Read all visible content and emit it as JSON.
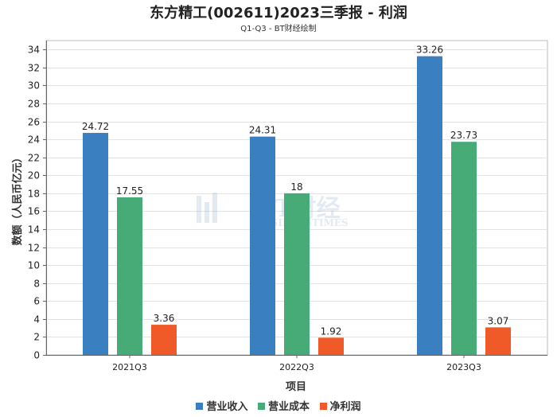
{
  "header": {
    "title": "东方精工(002611)2023三季报 - 利润",
    "subtitle": "Q1-Q3 - BT财经绘制"
  },
  "watermark": {
    "cn": "BT财经",
    "en": "BUSINESSTIMES"
  },
  "colors": {
    "series": [
      "#3a80c0",
      "#47ab77",
      "#f05a28"
    ]
  },
  "chart_data": {
    "type": "bar",
    "title": "东方精工(002611)2023三季报 - 利润",
    "subtitle": "Q1-Q3 - BT财经绘制",
    "xlabel": "项目",
    "ylabel": "数额（人民币亿元）",
    "categories": [
      "2021Q3",
      "2022Q3",
      "2023Q3"
    ],
    "series": [
      {
        "name": "营业收入",
        "values": [
          24.72,
          24.31,
          33.26
        ]
      },
      {
        "name": "营业成本",
        "values": [
          17.55,
          18,
          23.73
        ]
      },
      {
        "name": "净利润",
        "values": [
          3.36,
          1.92,
          3.07
        ]
      }
    ],
    "value_labels": [
      [
        "24.72",
        "24.31",
        "33.26"
      ],
      [
        "17.55",
        "18",
        "23.73"
      ],
      [
        "3.36",
        "1.92",
        "3.07"
      ]
    ],
    "ylim": [
      0,
      35
    ],
    "yticks": [
      0,
      2,
      4,
      6,
      8,
      10,
      12,
      14,
      16,
      18,
      20,
      22,
      24,
      26,
      28,
      30,
      32,
      34
    ],
    "ytick_labels": [
      "0",
      "2",
      "4",
      "6",
      "8",
      "10",
      "12",
      "14",
      "16",
      "18",
      "20",
      "22",
      "24",
      "26",
      "28",
      "30",
      "32",
      "34"
    ],
    "grid": true,
    "legend_position": "bottom"
  }
}
